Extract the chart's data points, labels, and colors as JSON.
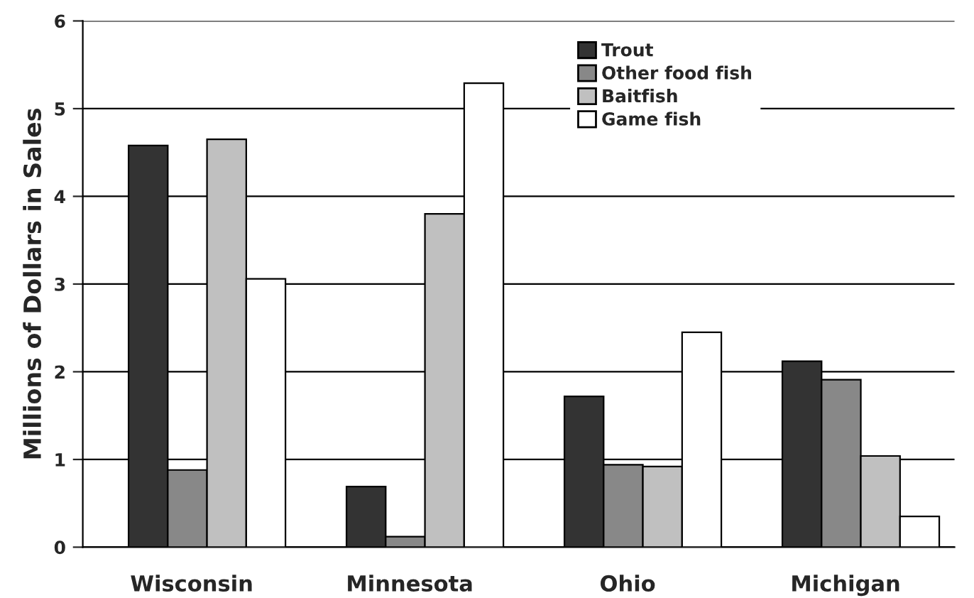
{
  "chart_data": {
    "type": "bar",
    "ylabel": "Millions of Dollars in Sales",
    "categories": [
      "Wisconsin",
      "Minnesota",
      "Ohio",
      "Michigan"
    ],
    "series": [
      {
        "name": "Trout",
        "color": "#333333",
        "values": [
          4.58,
          0.69,
          1.72,
          2.12
        ]
      },
      {
        "name": "Other food fish",
        "color": "#888888",
        "values": [
          0.88,
          0.12,
          0.94,
          1.91
        ]
      },
      {
        "name": "Baitfish",
        "color": "#c0c0c0",
        "values": [
          4.65,
          3.8,
          0.92,
          1.04
        ]
      },
      {
        "name": "Game fish",
        "color": "#ffffff",
        "values": [
          3.06,
          5.29,
          2.45,
          0.35
        ]
      }
    ],
    "ylim": [
      0,
      6
    ],
    "yticks": [
      0,
      1,
      2,
      3,
      4,
      5,
      6
    ],
    "grid": "y",
    "legend": "top right"
  }
}
